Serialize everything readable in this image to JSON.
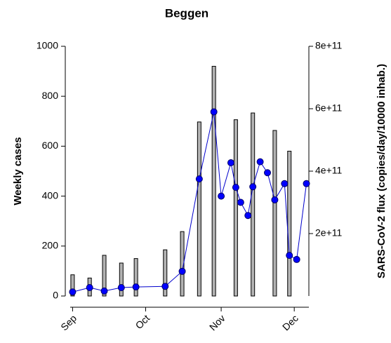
{
  "chart_data": {
    "type": "combo",
    "title": "Beggen",
    "y_label": "Weekly cases",
    "y2_label": "SARS-CoV-2 flux (copies/day/10000 inhab.)",
    "xlim": [
      -3,
      97
    ],
    "xticks": [
      {
        "value": 0,
        "label": "Sep"
      },
      {
        "value": 30,
        "label": "Oct"
      },
      {
        "value": 61,
        "label": "Nov"
      },
      {
        "value": 91,
        "label": "Dec"
      }
    ],
    "ylim": [
      0,
      1000
    ],
    "yticks": [
      0,
      200,
      400,
      600,
      800,
      1000
    ],
    "y2lim": [
      0,
      800000000000
    ],
    "y2ticks": [
      {
        "value": 200000000000,
        "label": "2e+11"
      },
      {
        "value": 400000000000,
        "label": "4e+11"
      },
      {
        "value": 600000000000,
        "label": "6e+11"
      },
      {
        "value": 800000000000,
        "label": "8e+11"
      }
    ],
    "series": [
      {
        "type": "bar",
        "color": "#b3b3b3",
        "x": [
          0,
          7,
          13,
          20,
          26,
          38,
          45,
          52,
          58,
          67,
          74,
          83,
          89
        ],
        "values": [
          85,
          72,
          163,
          132,
          150,
          185,
          258,
          697,
          920,
          706,
          733,
          663,
          580
        ]
      },
      {
        "type": "line",
        "axis": "y2",
        "color": "#0000ff",
        "x": [
          0,
          7,
          13,
          20,
          26,
          38,
          45,
          52,
          58,
          61,
          65,
          67,
          69,
          72,
          74,
          77,
          80,
          83,
          87,
          89,
          92,
          96
        ],
        "values": [
          13000000000,
          27000000000,
          16000000000,
          27000000000,
          29000000000,
          31000000000,
          79000000000,
          375000000000,
          590000000000,
          320000000000,
          427000000000,
          348000000000,
          300000000000,
          258000000000,
          350000000000,
          430000000000,
          395000000000,
          308000000000,
          360000000000,
          130000000000,
          117000000000,
          360000000000
        ]
      }
    ]
  }
}
